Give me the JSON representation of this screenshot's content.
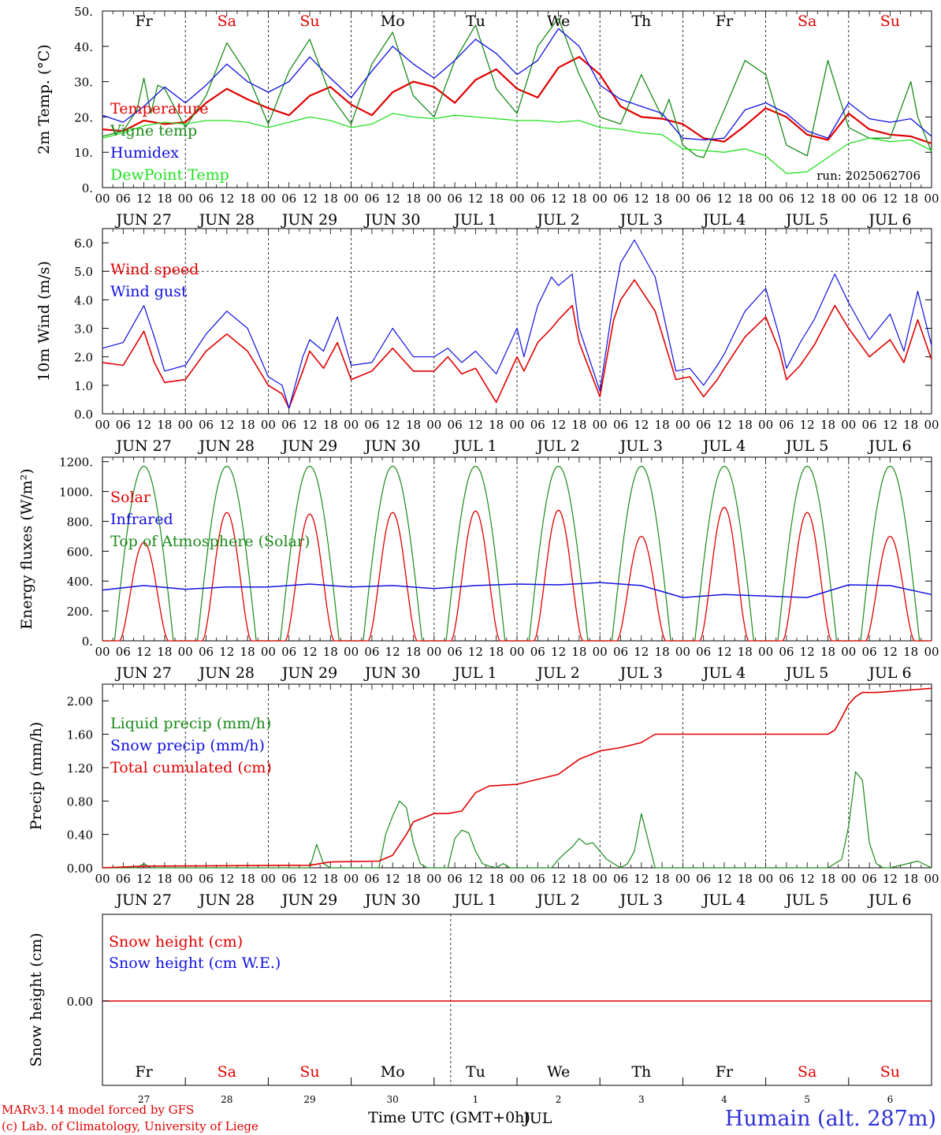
{
  "colors": {
    "red": "#e00000",
    "darkgreen": "#1a8a1a",
    "blue": "#1010e0",
    "lightgreen": "#22e022",
    "accent_blue": "#3030d8"
  },
  "day_heads": [
    "Fr",
    "Sa",
    "Su",
    "Mo",
    "Tu",
    "We",
    "Th",
    "Fr",
    "Sa",
    "Su"
  ],
  "day_head_colors": [
    "#000",
    "#e00000",
    "#e00000",
    "#000",
    "#000",
    "#000",
    "#000",
    "#000",
    "#e00000",
    "#e00000"
  ],
  "date_labels": [
    "JUN 27",
    "JUN 28",
    "JUN 29",
    "JUN 30",
    "JUL  1",
    "JUL  2",
    "JUL  3",
    "JUL  4",
    "JUL  5",
    "JUL  6"
  ],
  "hour_labels": [
    "00",
    "06",
    "12",
    "18"
  ],
  "final_hour_label": "00",
  "chart_data": [
    {
      "type": "line",
      "panel": "temperature",
      "ylabel": "2m Temp. (°C)",
      "ylim": [
        0,
        50
      ],
      "yticks": [
        "0.",
        "10.",
        "20.",
        "30.",
        "40.",
        "50."
      ],
      "x_unit": "hours since 2025-06-27 00 UTC",
      "annotation": "run: 2025062706",
      "series": [
        {
          "name": "Temperature",
          "color": "#e00000",
          "x": [
            0,
            6,
            12,
            18,
            24,
            30,
            36,
            42,
            48,
            54,
            60,
            66,
            72,
            78,
            84,
            90,
            96,
            102,
            108,
            114,
            120,
            126,
            132,
            138,
            144,
            150,
            156,
            162,
            168,
            174,
            180,
            186,
            192,
            198,
            204,
            210,
            216,
            222,
            228,
            234,
            240
          ],
          "y": [
            16.5,
            16,
            19,
            18,
            18.5,
            24,
            28,
            25,
            22.5,
            20.5,
            26,
            28.5,
            23.5,
            20.5,
            27,
            30,
            28.5,
            24,
            30.5,
            33.5,
            28,
            25.5,
            34,
            37,
            32,
            23,
            20,
            19.5,
            18,
            14,
            13,
            17.5,
            22.5,
            20,
            15,
            13.5,
            21,
            16.5,
            15,
            14.5,
            12.5
          ]
        },
        {
          "name": "Vigne temp",
          "color": "#1a8a1a",
          "x": [
            0,
            6,
            10,
            12,
            14,
            16,
            18,
            24,
            30,
            36,
            42,
            48,
            54,
            60,
            66,
            72,
            78,
            84,
            90,
            96,
            102,
            108,
            114,
            120,
            126,
            132,
            138,
            144,
            150,
            156,
            162,
            164,
            168,
            172,
            174,
            180,
            186,
            192,
            198,
            204,
            210,
            216,
            222,
            228,
            234,
            236,
            240
          ],
          "y": [
            14.5,
            16,
            22,
            31,
            21,
            29,
            28,
            17,
            26,
            41,
            32,
            18,
            33,
            42,
            26,
            18,
            35,
            44,
            26,
            20,
            36,
            46,
            28,
            21,
            40,
            48,
            32,
            20,
            18,
            32,
            20,
            25,
            12,
            9,
            8.5,
            22,
            36,
            32,
            12,
            9,
            36,
            17,
            14,
            14,
            30,
            20,
            10
          ]
        },
        {
          "name": "Humidex",
          "color": "#1010e0",
          "x": [
            0,
            6,
            12,
            18,
            24,
            30,
            36,
            42,
            48,
            54,
            60,
            66,
            72,
            78,
            84,
            90,
            96,
            102,
            108,
            114,
            120,
            126,
            132,
            138,
            144,
            150,
            156,
            162,
            168,
            174,
            180,
            186,
            192,
            198,
            204,
            210,
            216,
            222,
            228,
            234,
            240
          ],
          "y": [
            20.5,
            18.5,
            23,
            28.5,
            24,
            29,
            35,
            30,
            27,
            30,
            37,
            31,
            25.5,
            33,
            40,
            35,
            31,
            36,
            42,
            38,
            32,
            36,
            45,
            40,
            29,
            25,
            23,
            21,
            14,
            13.5,
            14,
            22,
            24,
            21,
            16,
            14,
            24,
            19.5,
            18.5,
            19.5,
            14.5
          ]
        },
        {
          "name": "DewPoint Temp",
          "color": "#22e022",
          "x": [
            0,
            6,
            12,
            18,
            24,
            30,
            36,
            42,
            48,
            54,
            60,
            66,
            72,
            78,
            84,
            90,
            96,
            102,
            108,
            114,
            120,
            126,
            132,
            138,
            144,
            150,
            156,
            162,
            168,
            174,
            180,
            186,
            192,
            198,
            204,
            210,
            216,
            222,
            228,
            234,
            240
          ],
          "y": [
            14,
            15.5,
            17.5,
            18.5,
            18,
            19,
            19,
            18.5,
            17,
            18.5,
            20,
            19,
            17,
            18,
            21,
            20,
            19.5,
            20.5,
            20,
            19.5,
            19,
            19,
            18.5,
            19,
            17,
            16.5,
            15.5,
            15,
            11,
            10.5,
            10,
            11,
            9,
            4,
            4.5,
            8.5,
            12.5,
            14,
            13,
            13.5,
            10.5
          ]
        }
      ]
    },
    {
      "type": "line",
      "panel": "wind",
      "ylabel": "10m Wind (m/s)",
      "ylim": [
        0,
        6.5
      ],
      "yticks": [
        "0.0",
        "1.0",
        "2.0",
        "3.0",
        "4.0",
        "5.0",
        "6.0"
      ],
      "series": [
        {
          "name": "Wind speed",
          "color": "#e00000",
          "x": [
            0,
            6,
            12,
            15,
            18,
            24,
            30,
            36,
            42,
            48,
            52,
            54,
            58,
            60,
            64,
            68,
            72,
            78,
            84,
            90,
            96,
            100,
            104,
            108,
            114,
            120,
            122,
            126,
            130,
            132,
            136,
            138,
            144,
            148,
            150,
            154,
            160,
            166,
            170,
            174,
            178,
            180,
            186,
            192,
            196,
            198,
            202,
            206,
            212,
            216,
            222,
            228,
            232,
            236,
            240
          ],
          "y": [
            1.8,
            1.7,
            2.9,
            1.8,
            1.1,
            1.2,
            2.2,
            2.8,
            2.2,
            1.0,
            0.7,
            0.2,
            1.5,
            2.2,
            1.6,
            2.5,
            1.2,
            1.5,
            2.3,
            1.5,
            1.5,
            2.0,
            1.4,
            1.6,
            0.4,
            2.0,
            1.5,
            2.5,
            3.0,
            3.3,
            3.8,
            2.5,
            0.6,
            3.3,
            4.0,
            4.7,
            3.6,
            1.2,
            1.3,
            0.6,
            1.2,
            1.6,
            2.7,
            3.4,
            2.2,
            1.2,
            1.7,
            2.4,
            3.8,
            3.0,
            2.0,
            2.6,
            1.8,
            3.3,
            1.9
          ]
        },
        {
          "name": "Wind gust",
          "color": "#1010e0",
          "x": [
            0,
            6,
            12,
            15,
            18,
            24,
            30,
            36,
            42,
            48,
            52,
            54,
            58,
            60,
            64,
            68,
            72,
            78,
            84,
            90,
            96,
            100,
            104,
            108,
            114,
            120,
            122,
            126,
            130,
            132,
            136,
            138,
            144,
            148,
            150,
            154,
            160,
            166,
            170,
            174,
            178,
            180,
            186,
            192,
            196,
            198,
            202,
            206,
            212,
            216,
            222,
            228,
            232,
            236,
            240
          ],
          "y": [
            2.3,
            2.5,
            3.8,
            2.7,
            1.5,
            1.7,
            2.8,
            3.6,
            3.0,
            1.3,
            1.0,
            0.2,
            2.0,
            2.6,
            2.2,
            3.4,
            1.7,
            1.8,
            3.0,
            2.0,
            2.0,
            2.3,
            1.8,
            2.2,
            1.4,
            3.0,
            2.0,
            3.8,
            4.8,
            4.5,
            4.9,
            3.0,
            0.8,
            4.0,
            5.3,
            6.1,
            4.8,
            1.5,
            1.6,
            1.0,
            1.7,
            2.1,
            3.6,
            4.4,
            2.7,
            1.6,
            2.5,
            3.3,
            4.9,
            3.9,
            2.6,
            3.5,
            2.2,
            4.3,
            2.4
          ]
        }
      ]
    },
    {
      "type": "line",
      "panel": "energy",
      "ylabel": "Energy fluxes (W/m²)",
      "ylim": [
        0,
        1200
      ],
      "yticks": [
        "0.",
        "200.",
        "400.",
        "600.",
        "800.",
        "1000.",
        "1200."
      ],
      "series": [
        {
          "name": "Solar",
          "color": "#e00000",
          "daily_peaks": [
            660,
            860,
            850,
            860,
            870,
            875,
            700,
            895,
            860,
            700
          ]
        },
        {
          "name": "Infrared",
          "color": "#1010e0",
          "x": [
            0,
            12,
            24,
            36,
            48,
            60,
            72,
            84,
            96,
            108,
            120,
            132,
            144,
            156,
            168,
            180,
            192,
            204,
            216,
            228,
            240
          ],
          "y": [
            340,
            370,
            345,
            360,
            360,
            380,
            360,
            370,
            350,
            370,
            380,
            375,
            390,
            370,
            290,
            310,
            300,
            290,
            375,
            370,
            310
          ]
        },
        {
          "name": "Top of Atmosphere (Solar)",
          "color": "#1a8a1a",
          "daily_peak": 1170
        }
      ]
    },
    {
      "type": "line",
      "panel": "precip",
      "ylabel": "Precip (mm/h)",
      "ylim": [
        0,
        2.2
      ],
      "yticks": [
        "0.00",
        "0.40",
        "0.80",
        "1.20",
        "1.60",
        "2.00"
      ],
      "series": [
        {
          "name": "Liquid precip (mm/h)",
          "color": "#1a8a1a",
          "x": [
            0,
            10,
            12,
            14,
            60,
            62,
            64,
            66,
            68,
            80,
            82,
            84,
            86,
            88,
            90,
            92,
            94,
            96,
            100,
            102,
            104,
            106,
            108,
            110,
            112,
            114,
            116,
            118,
            120,
            130,
            132,
            134,
            136,
            138,
            140,
            142,
            144,
            146,
            148,
            150,
            152,
            154,
            156,
            160,
            162,
            164,
            166,
            168,
            210,
            214,
            216,
            218,
            220,
            222,
            224,
            226,
            228,
            236,
            240
          ],
          "y": [
            0,
            0,
            0.05,
            0,
            0,
            0.28,
            0.05,
            0,
            0,
            0,
            0.4,
            0.62,
            0.8,
            0.72,
            0.3,
            0.05,
            0,
            0,
            0,
            0.35,
            0.45,
            0.42,
            0.2,
            0.05,
            0.02,
            0,
            0.05,
            0,
            0,
            0,
            0.1,
            0.18,
            0.25,
            0.35,
            0.28,
            0.3,
            0.2,
            0.1,
            0.05,
            0,
            0.05,
            0.2,
            0.65,
            0,
            0,
            0,
            0,
            0,
            0,
            0.1,
            0.5,
            1.15,
            1.05,
            0.3,
            0.05,
            0,
            0,
            0.08,
            0
          ]
        },
        {
          "name": "Snow precip (mm/h)",
          "color": "#1010e0",
          "values": []
        },
        {
          "name": "Total cumulated (cm)",
          "color": "#e00000",
          "x": [
            0,
            12,
            60,
            66,
            80,
            84,
            88,
            90,
            96,
            100,
            104,
            108,
            112,
            120,
            132,
            138,
            144,
            150,
            156,
            160,
            166,
            172,
            210,
            212,
            214,
            216,
            218,
            220,
            224,
            240
          ],
          "y": [
            0,
            0.02,
            0.03,
            0.07,
            0.08,
            0.15,
            0.4,
            0.55,
            0.65,
            0.65,
            0.68,
            0.9,
            0.98,
            1.0,
            1.12,
            1.3,
            1.4,
            1.44,
            1.5,
            1.6,
            1.6,
            1.6,
            1.6,
            1.65,
            1.8,
            1.96,
            2.05,
            2.1,
            2.1,
            2.15
          ]
        }
      ]
    },
    {
      "type": "line",
      "panel": "snow",
      "ylabel": "Snow height (cm)",
      "yticks": [
        "0.00"
      ],
      "series": [
        {
          "name": "Snow height (cm)",
          "color": "#e00000",
          "constant": 0.0
        },
        {
          "name": "Snow height (cm W.E.)",
          "color": "#1010e0",
          "constant": 0.0
        }
      ]
    }
  ],
  "snow_footer": {
    "day_numbers": [
      "27",
      "28",
      "29",
      "30",
      "1",
      "2",
      "3",
      "4",
      "5",
      "6"
    ],
    "month": "JUL",
    "xtitle": "Time UTC (GMT+0h)"
  },
  "credits": {
    "line1": "MARv3.14 model forced by GFS",
    "line2": "(c) Lab. of Climatology, University of Liege"
  },
  "station": "Humain (alt. 287m)"
}
